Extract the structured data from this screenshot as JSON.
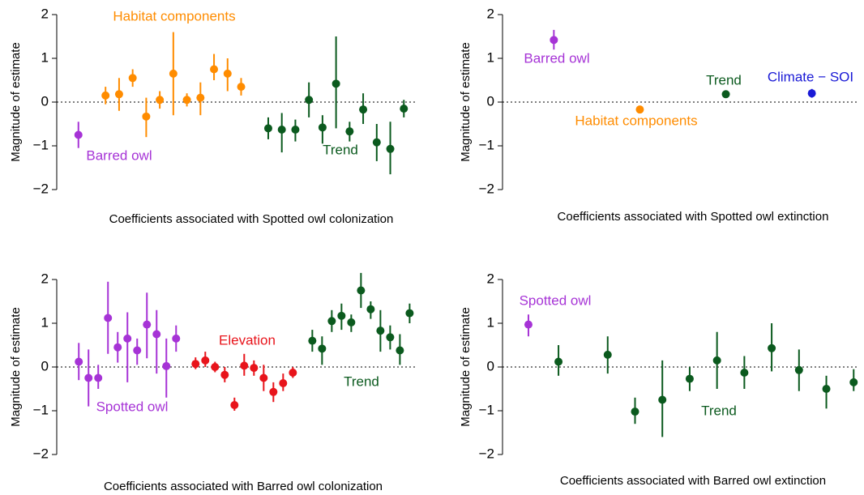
{
  "chart_data": [
    {
      "type": "errorbar",
      "x_label": "Coefficients associated with Spotted owl colonization",
      "y_label": "Magnitude of estimate",
      "xlim": [
        -0.3,
        26
      ],
      "ylim": [
        -2,
        2
      ],
      "yticks": [
        {
          "value": -2,
          "label": "−2"
        },
        {
          "value": -1,
          "label": "−1"
        },
        0,
        1,
        2
      ],
      "series": [
        {
          "name": "Barred owl",
          "color": "#a633d6",
          "x": [
            1
          ],
          "values": [
            -0.75
          ],
          "lower": [
            -1.05
          ],
          "upper": [
            -0.45
          ]
        },
        {
          "name": "Habitat components",
          "color": "#ff8c00",
          "x": [
            3,
            4,
            5,
            6,
            7,
            8,
            9,
            10,
            11,
            12,
            13
          ],
          "values": [
            0.15,
            0.18,
            0.55,
            -0.33,
            0.05,
            0.65,
            0.05,
            0.1,
            0.75,
            0.65,
            0.35
          ],
          "lower": [
            -0.05,
            -0.2,
            0.35,
            -0.8,
            -0.15,
            -0.3,
            -0.1,
            -0.3,
            0.5,
            0.25,
            0.15
          ],
          "upper": [
            0.35,
            0.55,
            0.75,
            0.1,
            0.25,
            1.6,
            0.2,
            0.45,
            1.1,
            1.0,
            0.55
          ]
        },
        {
          "name": "Trend",
          "color": "#0b5a1e",
          "x": [
            15,
            16,
            17,
            18,
            19,
            20,
            21,
            22,
            23,
            24,
            25
          ],
          "values": [
            -0.6,
            -0.63,
            -0.63,
            0.05,
            -0.58,
            0.42,
            -0.67,
            -0.17,
            -0.92,
            -1.07,
            -0.15
          ],
          "lower": [
            -0.85,
            -1.15,
            -0.9,
            -0.35,
            -0.95,
            -0.6,
            -0.9,
            -0.5,
            -1.35,
            -1.65,
            -0.35
          ],
          "upper": [
            -0.35,
            -0.25,
            -0.4,
            0.45,
            -0.3,
            1.5,
            -0.45,
            0.2,
            -0.5,
            -0.45,
            0.05
          ]
        }
      ]
    },
    {
      "type": "errorbar",
      "x_label": "Coefficients associated with Spotted owl extinction",
      "y_label": "Magnitude of estimate",
      "xlim": [
        0.45,
        4.55
      ],
      "ylim": [
        -2,
        2
      ],
      "yticks": [
        {
          "value": -2,
          "label": "−2"
        },
        {
          "value": -1,
          "label": "−1"
        },
        0,
        1,
        2
      ],
      "series": [
        {
          "name": "Barred owl",
          "color": "#a633d6",
          "x": [
            1
          ],
          "values": [
            1.42
          ],
          "lower": [
            1.2
          ],
          "upper": [
            1.65
          ]
        },
        {
          "name": "Habitat components",
          "color": "#ff8c00",
          "x": [
            2
          ],
          "values": [
            -0.17
          ],
          "lower": [
            -0.22
          ],
          "upper": [
            -0.12
          ]
        },
        {
          "name": "Trend",
          "color": "#0b5a1e",
          "x": [
            3
          ],
          "values": [
            0.18
          ],
          "lower": [
            0.11
          ],
          "upper": [
            0.25
          ]
        },
        {
          "name": "Climate − SOI",
          "color": "#1a1ad6",
          "x": [
            4
          ],
          "values": [
            0.2
          ],
          "lower": [
            0.1
          ],
          "upper": [
            0.3
          ]
        }
      ]
    },
    {
      "type": "errorbar",
      "x_label": "Coefficients associated with Barred owl colonization",
      "y_label": "Magnitude of estimate",
      "xlim": [
        -0.85,
        35.8
      ],
      "ylim": [
        -2,
        2
      ],
      "yticks": [
        {
          "value": -2,
          "label": "−2"
        },
        {
          "value": -1,
          "label": "−1"
        },
        0,
        1,
        2
      ],
      "series": [
        {
          "name": "Spotted owl",
          "color": "#a633d6",
          "x": [
            1,
            2,
            3,
            4,
            5,
            6,
            7,
            8,
            9,
            10,
            11
          ],
          "values": [
            0.12,
            -0.25,
            -0.25,
            1.12,
            0.45,
            0.65,
            0.38,
            0.97,
            0.75,
            0.02,
            0.65
          ],
          "lower": [
            -0.3,
            -0.9,
            -0.5,
            0.3,
            0.1,
            -0.35,
            0.05,
            0.2,
            -0.15,
            -0.7,
            0.35
          ],
          "upper": [
            0.55,
            0.4,
            0.05,
            1.95,
            0.8,
            1.25,
            0.65,
            1.7,
            1.3,
            0.65,
            0.95
          ]
        },
        {
          "name": "Elevation",
          "color": "#e8141b",
          "x": [
            13,
            14,
            15,
            16,
            17,
            18,
            19,
            20,
            21,
            22,
            23
          ],
          "values": [
            0.07,
            0.15,
            0.0,
            -0.18,
            -0.87,
            0.03,
            -0.02,
            -0.25,
            -0.57,
            -0.37,
            -0.13
          ],
          "lower": [
            -0.05,
            0.0,
            -0.12,
            -0.35,
            -1.0,
            -0.2,
            -0.2,
            -0.55,
            -0.8,
            -0.55,
            -0.25
          ],
          "upper": [
            0.22,
            0.35,
            0.12,
            0.0,
            -0.7,
            0.3,
            0.15,
            0.05,
            -0.35,
            -0.15,
            0.0
          ]
        },
        {
          "name": "Trend",
          "color": "#0b5a1e",
          "x": [
            25,
            26,
            27,
            28,
            29,
            30,
            31,
            32,
            33,
            34,
            35
          ],
          "values": [
            0.6,
            0.42,
            1.05,
            1.17,
            1.02,
            1.75,
            1.32,
            0.83,
            0.68,
            0.38,
            1.23
          ],
          "lower": [
            0.35,
            0.05,
            0.8,
            0.85,
            0.8,
            1.35,
            1.1,
            0.35,
            0.4,
            0.05,
            1.0
          ],
          "upper": [
            0.85,
            0.7,
            1.3,
            1.45,
            1.2,
            2.15,
            1.5,
            1.3,
            0.95,
            0.75,
            1.45
          ]
        }
      ]
    },
    {
      "type": "errorbar",
      "x_label": "Coefficients associated with Barred owl extinction",
      "y_label": "Magnitude of estimate",
      "xlim": [
        0.2,
        13.1
      ],
      "ylim": [
        -2,
        2
      ],
      "yticks": [
        {
          "value": -2,
          "label": "−2"
        },
        {
          "value": -1,
          "label": "−1"
        },
        0,
        1,
        2
      ],
      "series": [
        {
          "name": "Spotted owl",
          "color": "#a633d6",
          "x": [
            1
          ],
          "values": [
            0.97
          ],
          "lower": [
            0.7
          ],
          "upper": [
            1.2
          ]
        },
        {
          "name": "Trend",
          "color": "#0b5a1e",
          "x": [
            2.1,
            3.9,
            4.9,
            5.9,
            6.9,
            7.9,
            8.9,
            9.9,
            10.9,
            11.9,
            12.9
          ],
          "values": [
            0.12,
            0.28,
            -1.02,
            -0.75,
            -0.27,
            0.15,
            -0.13,
            0.43,
            -0.07,
            -0.5,
            -0.35
          ],
          "lower": [
            -0.2,
            -0.15,
            -1.3,
            -1.6,
            -0.55,
            -0.5,
            -0.5,
            -0.1,
            -0.55,
            -0.95,
            -0.55
          ],
          "upper": [
            0.5,
            0.7,
            -0.7,
            0.15,
            0.0,
            0.8,
            0.25,
            1.0,
            0.4,
            -0.2,
            -0.05
          ]
        }
      ]
    }
  ]
}
